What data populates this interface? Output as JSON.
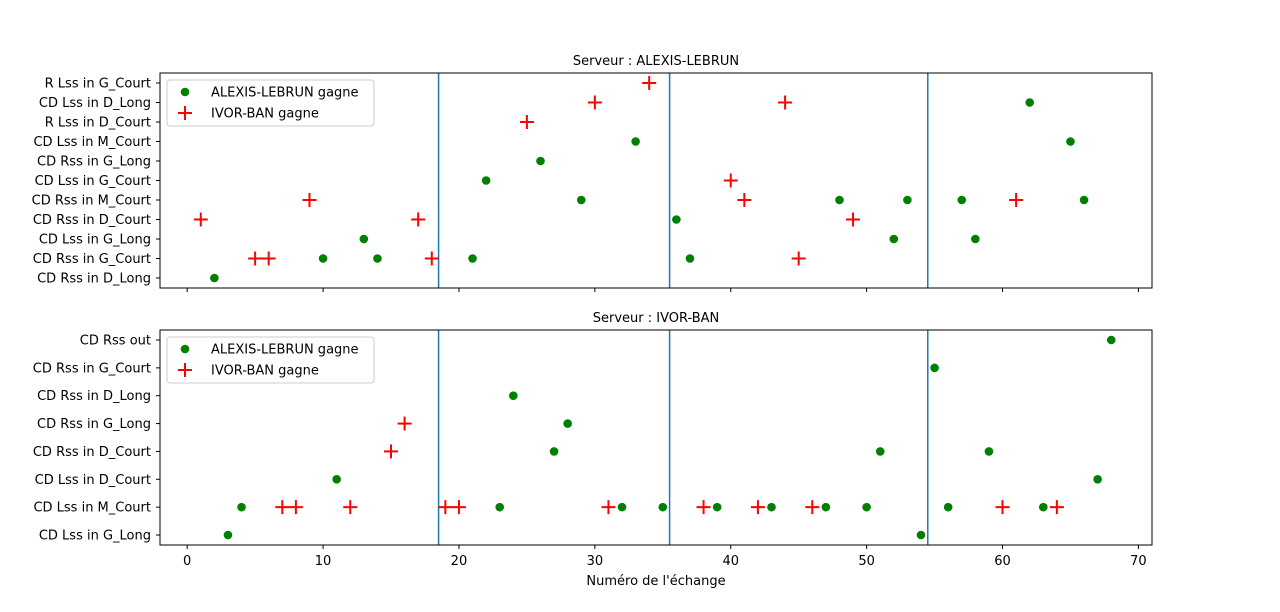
{
  "chart_data": [
    {
      "type": "scatter",
      "title": "Serveur : ALEXIS-LEBRUN",
      "xlabel": "",
      "ylabel": "",
      "xlim": [
        -2,
        71
      ],
      "xticks": [
        0,
        10,
        20,
        30,
        40,
        50,
        60,
        70
      ],
      "show_xtick_labels": false,
      "categories": [
        "CD Rss in D_Long",
        "CD Rss in G_Court",
        "CD Lss in G_Long",
        "CD Rss in D_Court",
        "CD Rss in M_Court",
        "CD Lss in G_Court",
        "CD Rss in G_Long",
        "CD Lss in M_Court",
        "R Lss in D_Court",
        "CD Lss in D_Long",
        "R Lss in G_Court"
      ],
      "vlines": [
        18.5,
        35.5,
        54.5
      ],
      "legend_position": "top-left",
      "grid": false,
      "series": [
        {
          "name": "ALEXIS-LEBRUN gagne",
          "marker": "dot",
          "color": "#008000",
          "points": [
            [
              2,
              "CD Rss in D_Long"
            ],
            [
              10,
              "CD Rss in G_Court"
            ],
            [
              13,
              "CD Lss in G_Long"
            ],
            [
              14,
              "CD Rss in G_Court"
            ],
            [
              21,
              "CD Rss in G_Court"
            ],
            [
              22,
              "CD Lss in G_Court"
            ],
            [
              26,
              "CD Rss in G_Long"
            ],
            [
              29,
              "CD Rss in M_Court"
            ],
            [
              33,
              "CD Lss in M_Court"
            ],
            [
              36,
              "CD Rss in D_Court"
            ],
            [
              37,
              "CD Rss in G_Court"
            ],
            [
              48,
              "CD Rss in M_Court"
            ],
            [
              52,
              "CD Lss in G_Long"
            ],
            [
              53,
              "CD Rss in M_Court"
            ],
            [
              57,
              "CD Rss in M_Court"
            ],
            [
              58,
              "CD Lss in G_Long"
            ],
            [
              62,
              "CD Lss in D_Long"
            ],
            [
              65,
              "CD Lss in M_Court"
            ],
            [
              66,
              "CD Rss in M_Court"
            ]
          ]
        },
        {
          "name": "IVOR-BAN gagne",
          "marker": "plus",
          "color": "#ff0000",
          "points": [
            [
              1,
              "CD Rss in D_Court"
            ],
            [
              5,
              "CD Rss in G_Court"
            ],
            [
              6,
              "CD Rss in G_Court"
            ],
            [
              9,
              "CD Rss in M_Court"
            ],
            [
              17,
              "CD Rss in D_Court"
            ],
            [
              18,
              "CD Rss in G_Court"
            ],
            [
              25,
              "R Lss in D_Court"
            ],
            [
              30,
              "CD Lss in D_Long"
            ],
            [
              34,
              "R Lss in G_Court"
            ],
            [
              40,
              "CD Lss in G_Court"
            ],
            [
              41,
              "CD Rss in M_Court"
            ],
            [
              44,
              "CD Lss in D_Long"
            ],
            [
              45,
              "CD Rss in G_Court"
            ],
            [
              49,
              "CD Rss in D_Court"
            ],
            [
              61,
              "CD Rss in M_Court"
            ]
          ]
        }
      ]
    },
    {
      "type": "scatter",
      "title": "Serveur : IVOR-BAN",
      "xlabel": "Numéro de l'échange",
      "ylabel": "",
      "xlim": [
        -2,
        71
      ],
      "xticks": [
        0,
        10,
        20,
        30,
        40,
        50,
        60,
        70
      ],
      "show_xtick_labels": true,
      "categories": [
        "CD Lss in G_Long",
        "CD Lss in M_Court",
        "CD Lss in D_Court",
        "CD Rss in D_Court",
        "CD Rss in G_Long",
        "CD Rss in D_Long",
        "CD Rss in G_Court",
        "CD Rss out"
      ],
      "vlines": [
        18.5,
        35.5,
        54.5
      ],
      "legend_position": "top-left",
      "grid": false,
      "series": [
        {
          "name": "ALEXIS-LEBRUN gagne",
          "marker": "dot",
          "color": "#008000",
          "points": [
            [
              3,
              "CD Lss in G_Long"
            ],
            [
              4,
              "CD Lss in M_Court"
            ],
            [
              11,
              "CD Lss in D_Court"
            ],
            [
              23,
              "CD Lss in M_Court"
            ],
            [
              24,
              "CD Rss in D_Long"
            ],
            [
              27,
              "CD Rss in D_Court"
            ],
            [
              28,
              "CD Rss in G_Long"
            ],
            [
              32,
              "CD Lss in M_Court"
            ],
            [
              35,
              "CD Lss in M_Court"
            ],
            [
              39,
              "CD Lss in M_Court"
            ],
            [
              43,
              "CD Lss in M_Court"
            ],
            [
              47,
              "CD Lss in M_Court"
            ],
            [
              50,
              "CD Lss in M_Court"
            ],
            [
              51,
              "CD Rss in D_Court"
            ],
            [
              54,
              "CD Lss in G_Long"
            ],
            [
              55,
              "CD Rss in G_Court"
            ],
            [
              56,
              "CD Lss in M_Court"
            ],
            [
              59,
              "CD Rss in D_Court"
            ],
            [
              63,
              "CD Lss in M_Court"
            ],
            [
              67,
              "CD Lss in D_Court"
            ],
            [
              68,
              "CD Rss out"
            ]
          ]
        },
        {
          "name": "IVOR-BAN gagne",
          "marker": "plus",
          "color": "#ff0000",
          "points": [
            [
              7,
              "CD Lss in M_Court"
            ],
            [
              8,
              "CD Lss in M_Court"
            ],
            [
              12,
              "CD Lss in M_Court"
            ],
            [
              15,
              "CD Rss in D_Court"
            ],
            [
              16,
              "CD Rss in G_Long"
            ],
            [
              19,
              "CD Lss in M_Court"
            ],
            [
              20,
              "CD Lss in M_Court"
            ],
            [
              31,
              "CD Lss in M_Court"
            ],
            [
              38,
              "CD Lss in M_Court"
            ],
            [
              42,
              "CD Lss in M_Court"
            ],
            [
              46,
              "CD Lss in M_Court"
            ],
            [
              60,
              "CD Lss in M_Court"
            ],
            [
              64,
              "CD Lss in M_Court"
            ]
          ]
        }
      ]
    }
  ],
  "style": {
    "vline_color": "#1f77b4",
    "axis_color": "#000000",
    "legend_border": "#cccccc"
  }
}
